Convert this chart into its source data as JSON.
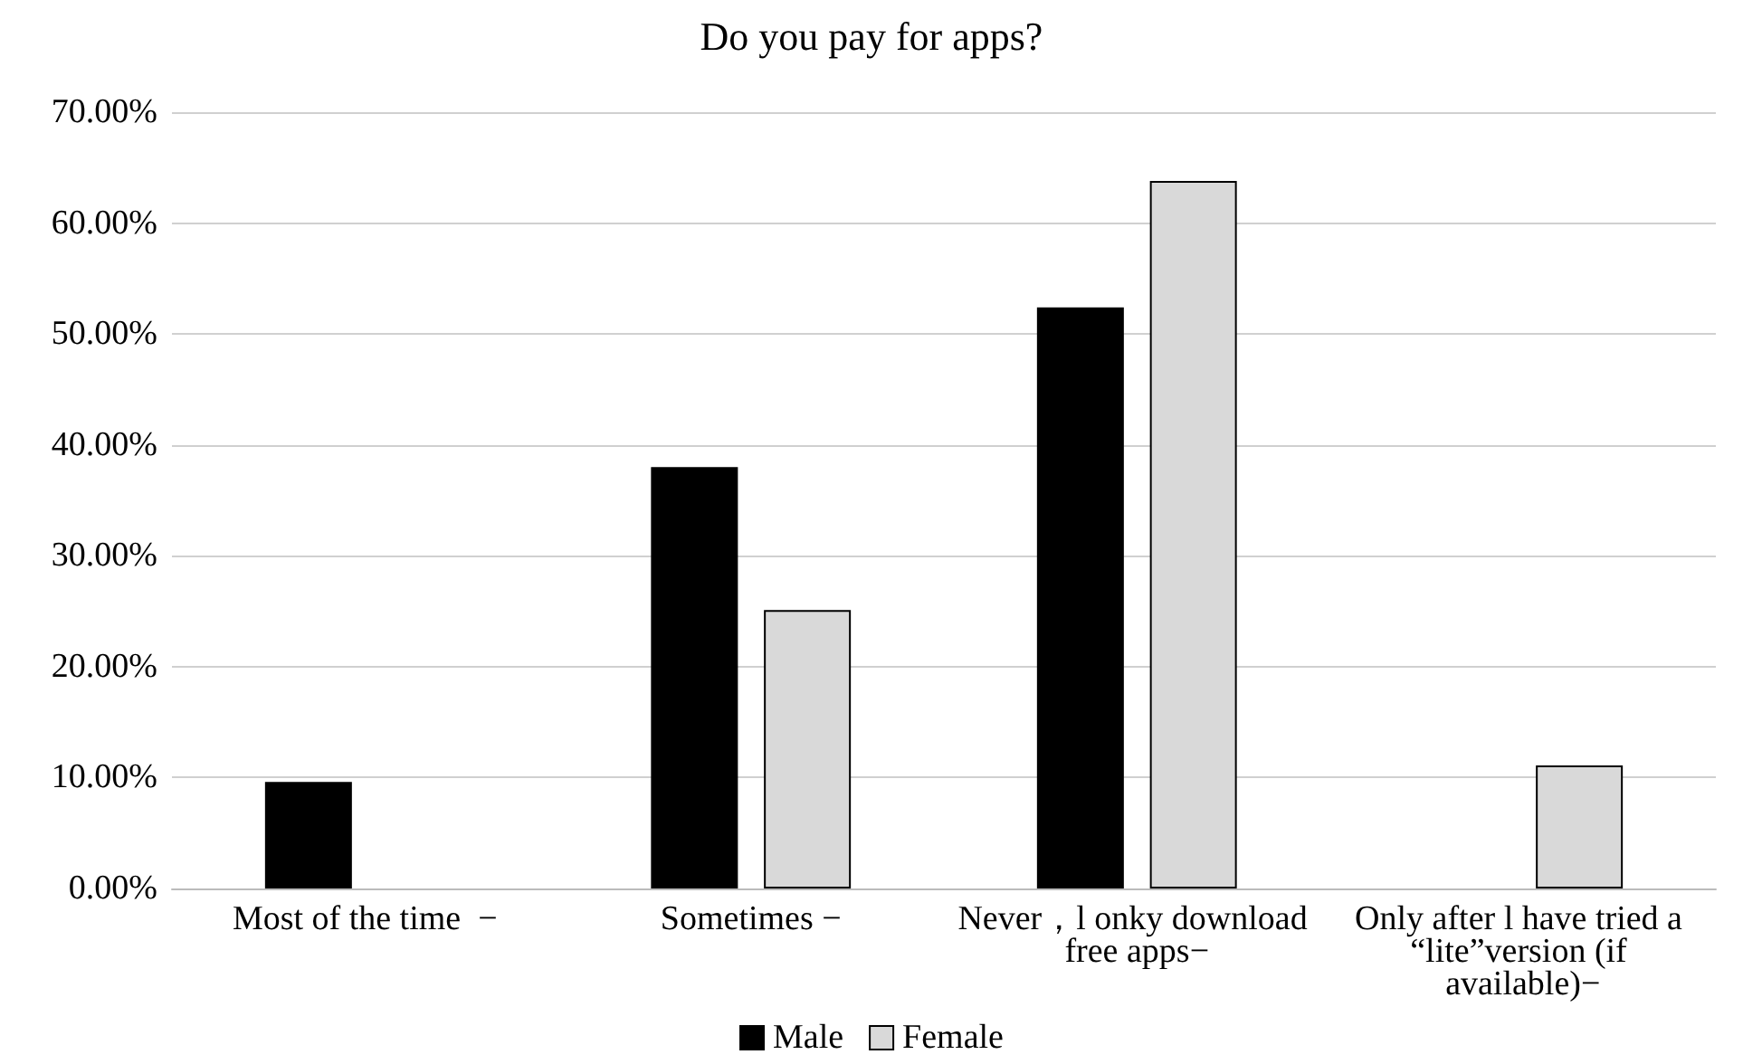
{
  "chart_data": {
    "type": "bar",
    "title": "Do you pay for apps?",
    "categories": [
      "Most of the time  −",
      "Sometimes −",
      "Never，l onky download free apps−",
      "Only after l have tried a “lite”version (if available)−"
    ],
    "series": [
      {
        "name": "Male",
        "color": "#000000",
        "values": [
          9.6,
          38.0,
          52.4,
          null
        ]
      },
      {
        "name": "Female",
        "color": "#d9d9d9",
        "values": [
          null,
          25.1,
          63.8,
          11.1
        ]
      }
    ],
    "ylim": [
      0,
      70
    ],
    "yticks": [
      {
        "value": 0,
        "label": "0.00%"
      },
      {
        "value": 10,
        "label": "10.00%"
      },
      {
        "value": 20,
        "label": "20.00%"
      },
      {
        "value": 30,
        "label": "30.00%"
      },
      {
        "value": 40,
        "label": "40.00%"
      },
      {
        "value": 50,
        "label": "50.00%"
      },
      {
        "value": 60,
        "label": "60.00%"
      },
      {
        "value": 70,
        "label": "70.00%"
      }
    ],
    "grid": "y",
    "legend": "bottom"
  }
}
